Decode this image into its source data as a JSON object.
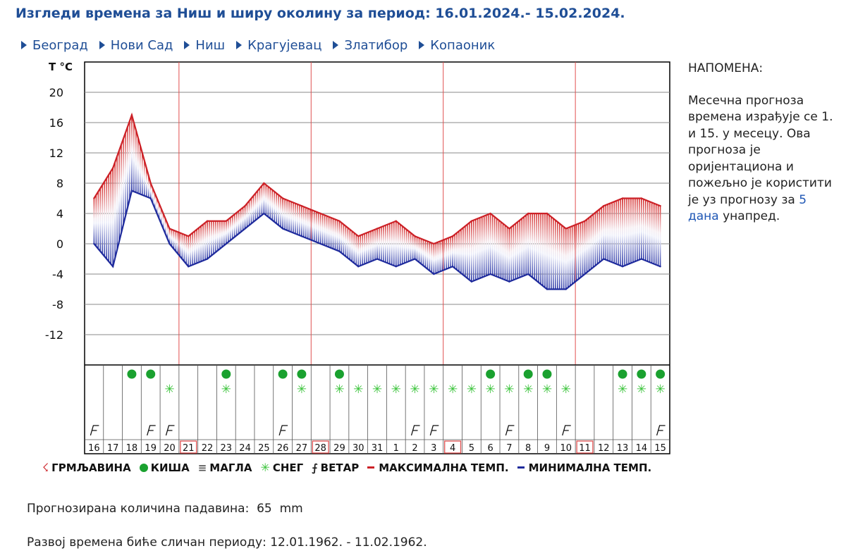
{
  "page": {
    "title": "Изгледи времена за Ниш и ширу околину за период: 16.01.2024.- 15.02.2024.",
    "cities": [
      "Београд",
      "Нови Сад",
      "Ниш",
      "Крагујевац",
      "Златибор",
      "Копаоник"
    ]
  },
  "note": {
    "heading": "НАПОМЕНА:",
    "text_before": "Месечна прогноза времена израђује се 1. и 15. у месецу. Ова прогноза је оријентациона и пожељно је користити је уз прогнозу за ",
    "highlight": "5 дана",
    "text_after": " унапред."
  },
  "legend": {
    "thunder": "ГРМЉАВИНА",
    "rain": "КИША",
    "fog": "МАГЛА",
    "snow": "СНЕГ",
    "wind": "ВЕТАР",
    "max": "МАКСИМАЛНА ТЕМП.",
    "min": "МИНИМАЛНА ТЕМП."
  },
  "summary": {
    "precip_label": "Прогнозирана количина падавина:",
    "precip_value": "65",
    "precip_unit": "mm",
    "analog_label": "Развој времена биће сличан периоду:",
    "analog_period": "12.01.1962. - 11.02.1962."
  },
  "colors": {
    "max": "#cc2127",
    "min": "#1e2a9c",
    "rain": "#1aa12f",
    "snow": "#3bc43b",
    "accent": "#1f4e96",
    "weekend": "#e05050"
  },
  "chart_data": {
    "type": "line",
    "ylabel": "T °C",
    "y_ticks": [
      "20",
      "16",
      "12",
      "8",
      "4",
      "0",
      "-4",
      "-8",
      "-12"
    ],
    "ylim": [
      -16,
      24
    ],
    "categories": [
      "16",
      "17",
      "18",
      "19",
      "20",
      "21",
      "22",
      "23",
      "24",
      "25",
      "26",
      "27",
      "28",
      "29",
      "30",
      "31",
      "1",
      "2",
      "3",
      "4",
      "5",
      "6",
      "7",
      "8",
      "9",
      "10",
      "11",
      "12",
      "13",
      "14",
      "15"
    ],
    "sundays": [
      "21",
      "28",
      "4",
      "11"
    ],
    "series": [
      {
        "name": "МАКСИМАЛНА ТЕМП.",
        "values": [
          6,
          10,
          17,
          8,
          2,
          1,
          3,
          3,
          5,
          8,
          6,
          5,
          4,
          3,
          1,
          2,
          3,
          1,
          0,
          1,
          3,
          4,
          2,
          4,
          4,
          2,
          3,
          5,
          6,
          6,
          5
        ]
      },
      {
        "name": "МИНИМАЛНА ТЕМП.",
        "values": [
          0,
          -3,
          7,
          6,
          0,
          -3,
          -2,
          0,
          2,
          4,
          2,
          1,
          0,
          -1,
          -3,
          -2,
          -3,
          -2,
          -4,
          -3,
          -5,
          -4,
          -5,
          -4,
          -6,
          -6,
          -4,
          -2,
          -3,
          -2,
          -3
        ]
      }
    ],
    "rain_days": [
      "18",
      "19",
      "23",
      "26",
      "27",
      "29",
      "6",
      "8",
      "9",
      "13",
      "14",
      "15"
    ],
    "snow_days": [
      "20",
      "23",
      "27",
      "29",
      "30",
      "31",
      "1",
      "2",
      "3",
      "4",
      "5",
      "6",
      "7",
      "8",
      "9",
      "10",
      "13",
      "14",
      "15"
    ],
    "wind_days": [
      "16",
      "19",
      "20",
      "26",
      "2",
      "3",
      "7",
      "10",
      "15"
    ]
  }
}
